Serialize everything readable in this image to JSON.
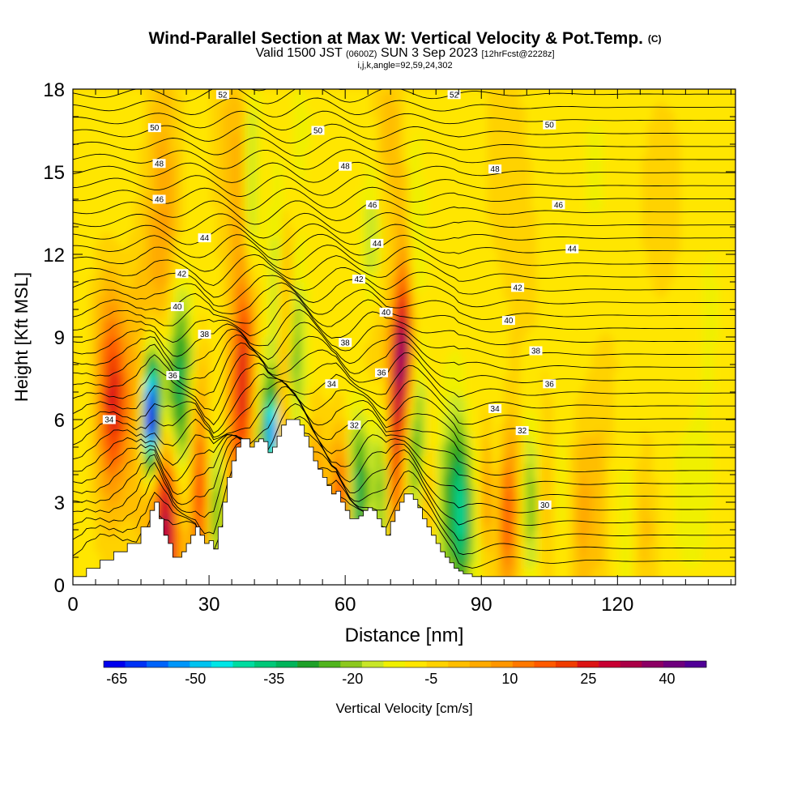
{
  "header": {
    "title": "Wind-Parallel Section at Max W: Vertical Velocity & Pot.Temp.",
    "title_mark": "(C)",
    "valid_prefix": "Valid 1500 JST",
    "valid_utc": "(0600Z)",
    "valid_date": "SUN 3 Sep 2023",
    "forecast": "[12hrFcst@2228z]",
    "indices": "i,j,k,angle=92,59,24,302"
  },
  "chart_data": {
    "type": "heatmap",
    "xlabel": "Distance [nm]",
    "ylabel": "Height [Kft MSL]",
    "xlim": [
      0,
      146
    ],
    "ylim": [
      0,
      18
    ],
    "x_ticks": [
      0,
      30,
      60,
      90,
      120
    ],
    "y_ticks": [
      0,
      3,
      6,
      9,
      12,
      15,
      18
    ],
    "colorbar": {
      "label": "Vertical Velocity [cm/s]",
      "tick_values": [
        -65,
        -50,
        -35,
        -20,
        -5,
        10,
        25,
        40
      ],
      "min": -67.5,
      "max": 47.5,
      "step": 5,
      "colors": [
        "#0000ee",
        "#0032f5",
        "#0064fa",
        "#0096fa",
        "#00c3f0",
        "#00e6e6",
        "#00dca0",
        "#00c878",
        "#00b45a",
        "#1ea028",
        "#50b41e",
        "#8cc81e",
        "#c8e628",
        "#f0f000",
        "#ffe600",
        "#ffd200",
        "#ffbe00",
        "#ffaa00",
        "#ff9600",
        "#ff7800",
        "#ff5a00",
        "#f03c00",
        "#dc1414",
        "#c80032",
        "#aa0046",
        "#8c0064",
        "#6e007d",
        "#500096"
      ]
    },
    "theta_contours": [
      {
        "label": "30",
        "label_at": [
          104,
          2.9
        ]
      },
      {
        "label": "32",
        "label_at": [
          62,
          5.8
        ]
      },
      {
        "label": "32",
        "label_at": [
          99,
          5.6
        ]
      },
      {
        "label": "34",
        "label_at": [
          8,
          6.0
        ]
      },
      {
        "label": "34",
        "label_at": [
          57,
          7.3
        ]
      },
      {
        "label": "34",
        "label_at": [
          93,
          6.4
        ]
      },
      {
        "label": "36",
        "label_at": [
          22,
          7.6
        ]
      },
      {
        "label": "36",
        "label_at": [
          68,
          7.7
        ]
      },
      {
        "label": "36",
        "label_at": [
          105,
          7.3
        ]
      },
      {
        "label": "38",
        "label_at": [
          29,
          9.1
        ]
      },
      {
        "label": "38",
        "label_at": [
          60,
          8.8
        ]
      },
      {
        "label": "38",
        "label_at": [
          102,
          8.5
        ]
      },
      {
        "label": "40",
        "label_at": [
          23,
          10.1
        ]
      },
      {
        "label": "40",
        "label_at": [
          69,
          9.9
        ]
      },
      {
        "label": "40",
        "label_at": [
          96,
          9.6
        ]
      },
      {
        "label": "42",
        "label_at": [
          24,
          11.3
        ]
      },
      {
        "label": "42",
        "label_at": [
          63,
          11.1
        ]
      },
      {
        "label": "42",
        "label_at": [
          98,
          10.8
        ]
      },
      {
        "label": "44",
        "label_at": [
          29,
          12.6
        ]
      },
      {
        "label": "44",
        "label_at": [
          67,
          12.4
        ]
      },
      {
        "label": "44",
        "label_at": [
          110,
          12.2
        ]
      },
      {
        "label": "46",
        "label_at": [
          19,
          14.0
        ]
      },
      {
        "label": "46",
        "label_at": [
          66,
          13.8
        ]
      },
      {
        "label": "46",
        "label_at": [
          107,
          13.8
        ]
      },
      {
        "label": "48",
        "label_at": [
          19,
          15.3
        ]
      },
      {
        "label": "48",
        "label_at": [
          60,
          15.2
        ]
      },
      {
        "label": "48",
        "label_at": [
          93,
          15.1
        ]
      },
      {
        "label": "50",
        "label_at": [
          18,
          16.6
        ]
      },
      {
        "label": "50",
        "label_at": [
          54,
          16.5
        ]
      },
      {
        "label": "50",
        "label_at": [
          105,
          16.7
        ]
      },
      {
        "label": "52",
        "label_at": [
          33,
          17.8
        ]
      },
      {
        "label": "52",
        "label_at": [
          84,
          17.8
        ]
      }
    ],
    "terrain_profile": {
      "x": [
        0,
        3,
        6,
        9,
        12,
        15,
        17,
        18,
        19,
        20,
        21,
        22,
        23,
        24,
        25,
        26,
        27,
        28,
        29,
        30,
        31,
        32,
        33,
        34,
        35,
        36,
        37,
        38,
        39,
        40,
        41,
        42,
        43,
        44,
        45,
        46,
        47,
        48,
        49,
        50,
        51,
        52,
        53,
        54,
        55,
        56,
        57,
        58,
        59,
        60,
        61,
        62,
        63,
        64,
        65,
        66,
        67,
        68,
        69,
        70,
        71,
        72,
        73,
        74,
        75,
        76,
        77,
        78,
        79,
        80,
        81,
        82,
        83,
        84,
        85,
        86,
        87,
        88,
        89,
        90,
        91,
        92,
        93,
        94,
        95,
        100,
        110,
        120,
        130,
        140,
        146
      ],
      "y": [
        0.3,
        0.6,
        0.9,
        1.2,
        1.5,
        2.1,
        2.7,
        3.0,
        2.4,
        1.8,
        1.5,
        1.0,
        1.0,
        1.2,
        1.5,
        1.8,
        2.1,
        1.8,
        1.5,
        1.6,
        1.3,
        2.1,
        3.0,
        3.9,
        4.5,
        5.0,
        5.3,
        5.3,
        5.0,
        5.2,
        5.3,
        5.2,
        4.8,
        5.0,
        5.4,
        5.8,
        6.0,
        6.0,
        6.0,
        5.8,
        5.4,
        5.0,
        4.5,
        4.2,
        3.9,
        3.6,
        3.3,
        3.4,
        3.0,
        2.7,
        2.4,
        2.4,
        2.5,
        2.7,
        2.8,
        2.7,
        2.4,
        2.1,
        1.8,
        2.3,
        2.7,
        3.0,
        3.3,
        3.3,
        3.1,
        2.8,
        2.4,
        2.1,
        1.8,
        1.5,
        1.2,
        1.0,
        0.8,
        0.6,
        0.5,
        0.4,
        0.4,
        0.3,
        0.3,
        0.3,
        0.3,
        0.3,
        0.3,
        0.3,
        0.3,
        0.3,
        0.3,
        0.3,
        0.3,
        0.3,
        0.3
      ]
    }
  }
}
